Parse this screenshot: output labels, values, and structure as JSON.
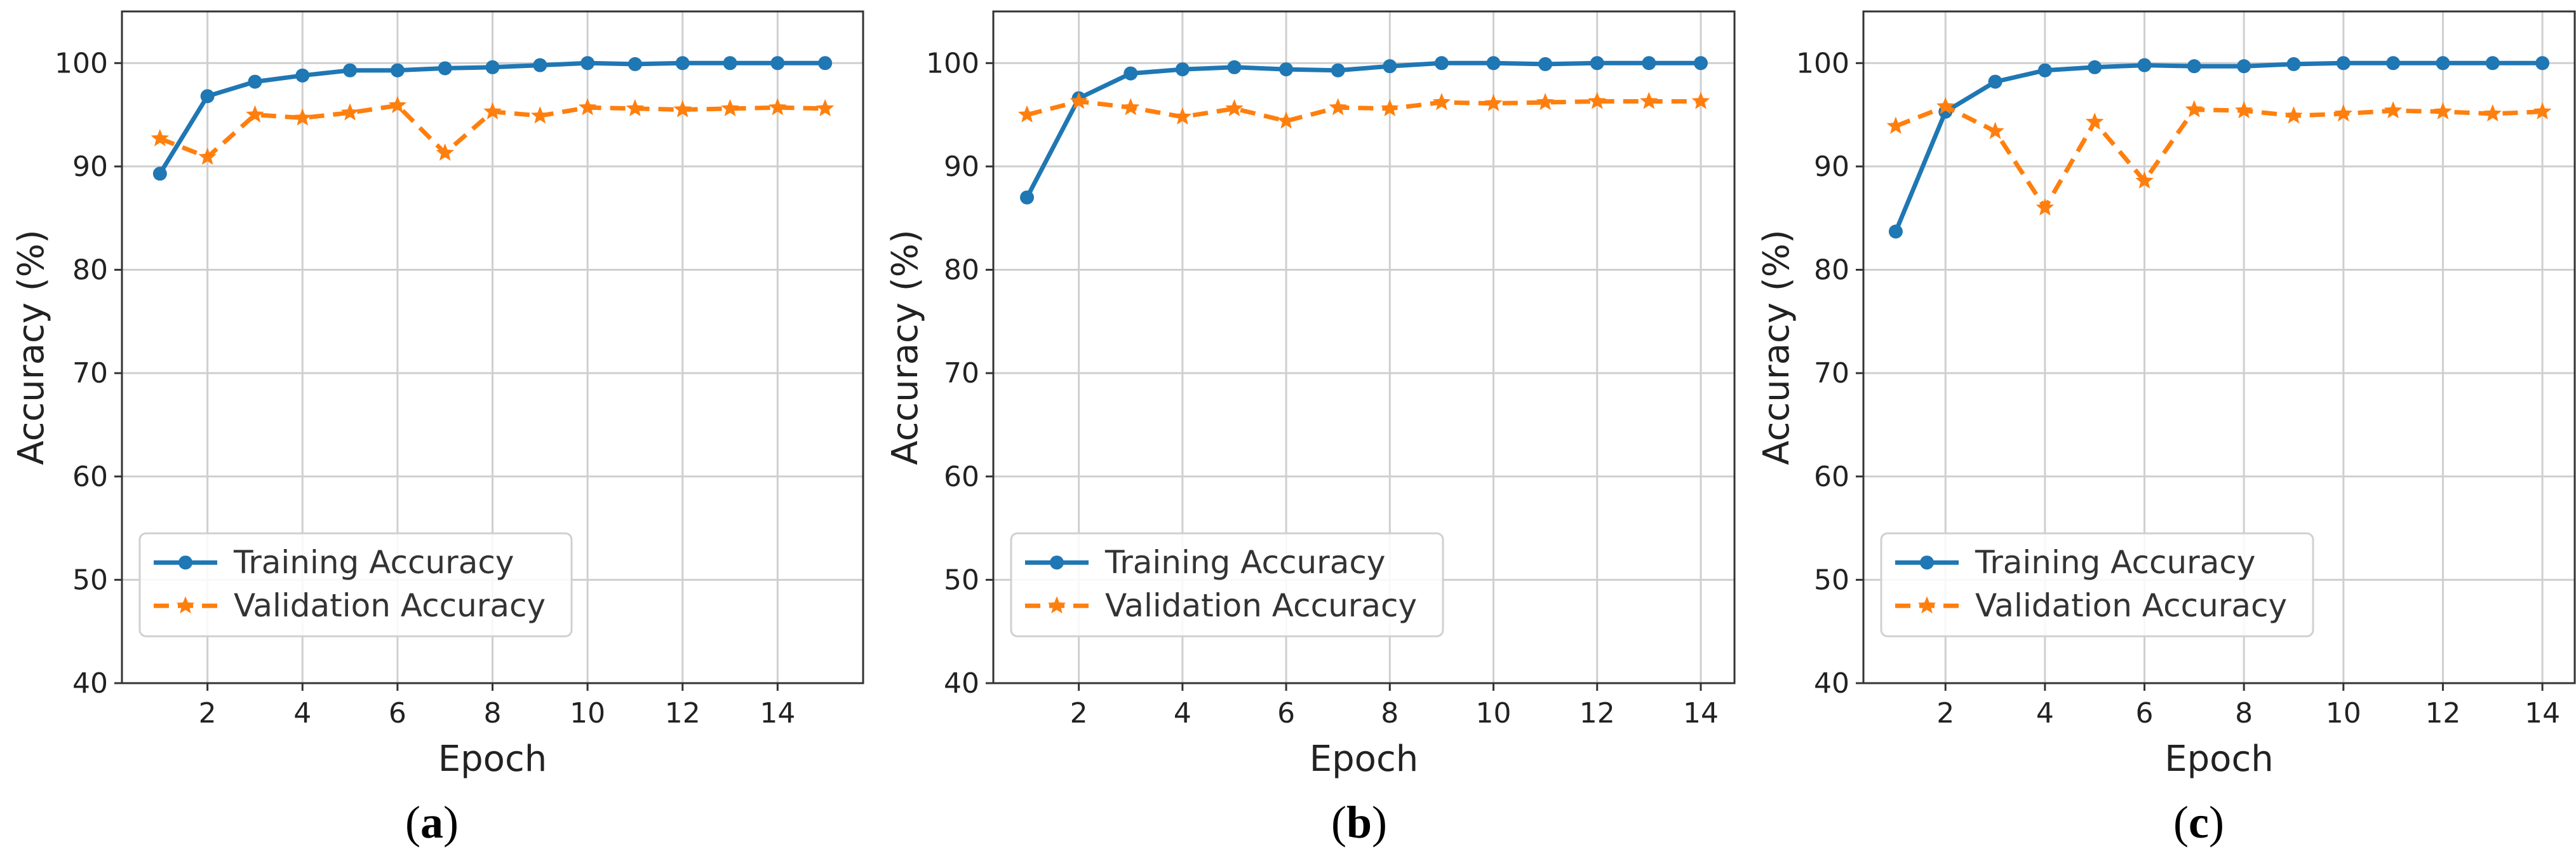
{
  "colors": {
    "training": "#1f77b4",
    "validation": "#ff7f0e",
    "grid": "#cfcfcf",
    "frame": "#333333"
  },
  "chart_data": [
    {
      "type": "line",
      "panel_label": "a",
      "xlabel": "Epoch",
      "ylabel": "Accuracy (%)",
      "xlim": [
        0.2,
        15.8
      ],
      "ylim": [
        40,
        105
      ],
      "xticks": [
        2,
        4,
        6,
        8,
        10,
        12,
        14
      ],
      "yticks": [
        40,
        50,
        60,
        70,
        80,
        90,
        100
      ],
      "grid": true,
      "legend_position": "lower-left",
      "x": [
        1,
        2,
        3,
        4,
        5,
        6,
        7,
        8,
        9,
        10,
        11,
        12,
        13,
        14,
        15
      ],
      "series": [
        {
          "name": "Training Accuracy",
          "marker": "circle",
          "linestyle": "solid",
          "values": [
            89.3,
            96.8,
            98.2,
            98.8,
            99.3,
            99.3,
            99.5,
            99.6,
            99.8,
            100,
            99.9,
            100,
            100,
            100,
            100
          ]
        },
        {
          "name": "Validation Accuracy",
          "marker": "star",
          "linestyle": "dashed",
          "values": [
            92.7,
            90.9,
            95.0,
            94.7,
            95.2,
            95.9,
            91.3,
            95.3,
            94.9,
            95.7,
            95.6,
            95.5,
            95.6,
            95.7,
            95.6
          ]
        }
      ]
    },
    {
      "type": "line",
      "panel_label": "b",
      "xlabel": "Epoch",
      "ylabel": "Accuracy (%)",
      "xlim": [
        0.35,
        14.65
      ],
      "ylim": [
        40,
        105
      ],
      "xticks": [
        2,
        4,
        6,
        8,
        10,
        12,
        14
      ],
      "yticks": [
        40,
        50,
        60,
        70,
        80,
        90,
        100
      ],
      "grid": true,
      "legend_position": "lower-left",
      "x": [
        1,
        2,
        3,
        4,
        5,
        6,
        7,
        8,
        9,
        10,
        11,
        12,
        13,
        14
      ],
      "series": [
        {
          "name": "Training Accuracy",
          "marker": "circle",
          "linestyle": "solid",
          "values": [
            87.0,
            96.6,
            99.0,
            99.4,
            99.6,
            99.4,
            99.3,
            99.7,
            100,
            100,
            99.9,
            100,
            100,
            100
          ]
        },
        {
          "name": "Validation Accuracy",
          "marker": "star",
          "linestyle": "dashed",
          "values": [
            95.0,
            96.3,
            95.7,
            94.8,
            95.6,
            94.4,
            95.7,
            95.6,
            96.2,
            96.1,
            96.2,
            96.3,
            96.3,
            96.3
          ]
        }
      ]
    },
    {
      "type": "line",
      "panel_label": "c",
      "xlabel": "Epoch",
      "ylabel": "Accuracy (%)",
      "xlim": [
        0.35,
        14.65
      ],
      "ylim": [
        40,
        105
      ],
      "xticks": [
        2,
        4,
        6,
        8,
        10,
        12,
        14
      ],
      "yticks": [
        40,
        50,
        60,
        70,
        80,
        90,
        100
      ],
      "grid": true,
      "legend_position": "lower-left",
      "x": [
        1,
        2,
        3,
        4,
        5,
        6,
        7,
        8,
        9,
        10,
        11,
        12,
        13,
        14
      ],
      "series": [
        {
          "name": "Training Accuracy",
          "marker": "circle",
          "linestyle": "solid",
          "values": [
            83.7,
            95.3,
            98.2,
            99.3,
            99.6,
            99.8,
            99.7,
            99.7,
            99.9,
            100,
            100,
            100,
            100,
            100
          ]
        },
        {
          "name": "Validation Accuracy",
          "marker": "star",
          "linestyle": "dashed",
          "values": [
            93.9,
            95.8,
            93.4,
            86.0,
            94.3,
            88.6,
            95.5,
            95.4,
            94.9,
            95.1,
            95.4,
            95.3,
            95.1,
            95.3
          ]
        }
      ]
    }
  ]
}
